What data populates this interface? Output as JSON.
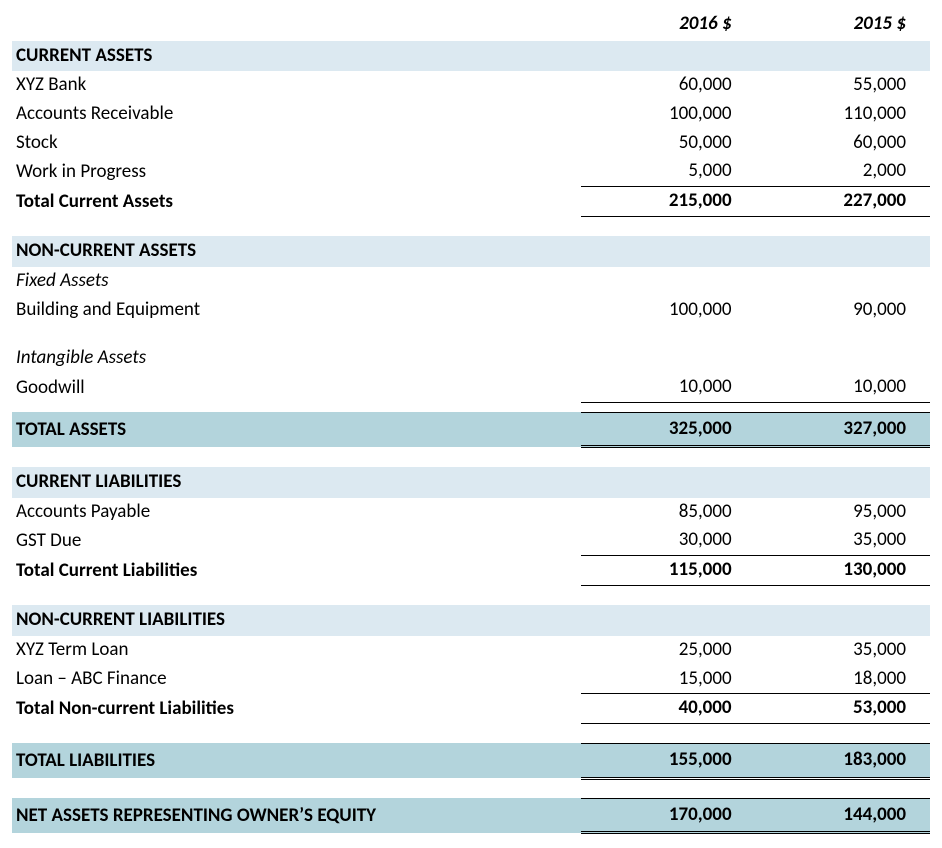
{
  "columns": {
    "year1": "2016 $",
    "year2": "2015 $"
  },
  "colors": {
    "section_light_bg": "#dce9f1",
    "section_dark_bg": "#b3d4dc",
    "text": "#000000",
    "background": "#ffffff",
    "border": "#000000"
  },
  "typography": {
    "font_family": "Calibri",
    "base_fontsize": 19
  },
  "sections": {
    "current_assets": {
      "header": "CURRENT ASSETS",
      "rows": [
        {
          "label": "XYZ Bank",
          "v1": "60,000",
          "v2": "55,000"
        },
        {
          "label": "Accounts Receivable",
          "v1": "100,000",
          "v2": "110,000"
        },
        {
          "label": "Stock",
          "v1": "50,000",
          "v2": "60,000"
        },
        {
          "label": "Work in Progress",
          "v1": "5,000",
          "v2": "2,000"
        }
      ],
      "total": {
        "label": "Total Current Assets",
        "v1": "215,000",
        "v2": "227,000"
      }
    },
    "non_current_assets": {
      "header": "NON-CURRENT ASSETS",
      "sub1": {
        "label": "Fixed Assets"
      },
      "rows1": [
        {
          "label": "Building and Equipment",
          "v1": "100,000",
          "v2": "90,000"
        }
      ],
      "sub2": {
        "label": "Intangible Assets"
      },
      "rows2": [
        {
          "label": "Goodwill",
          "v1": "10,000",
          "v2": "10,000"
        }
      ]
    },
    "total_assets": {
      "label": "TOTAL ASSETS",
      "v1": "325,000",
      "v2": "327,000"
    },
    "current_liabilities": {
      "header": "CURRENT LIABILITIES",
      "rows": [
        {
          "label": "Accounts Payable",
          "v1": "85,000",
          "v2": "95,000"
        },
        {
          "label": "GST Due",
          "v1": "30,000",
          "v2": "35,000"
        }
      ],
      "total": {
        "label": "Total Current Liabilities",
        "v1": "115,000",
        "v2": "130,000"
      }
    },
    "non_current_liabilities": {
      "header": "NON-CURRENT LIABILITIES",
      "rows": [
        {
          "label": "XYZ Term Loan",
          "v1": "25,000",
          "v2": "35,000"
        },
        {
          "label": "Loan – ABC Finance",
          "v1": "15,000",
          "v2": "18,000"
        }
      ],
      "total": {
        "label": "Total Non-current Liabilities",
        "v1": "40,000",
        "v2": "53,000"
      }
    },
    "total_liabilities": {
      "label": "TOTAL LIABILITIES",
      "v1": "155,000",
      "v2": "183,000"
    },
    "net_assets": {
      "label": "NET ASSETS REPRESENTING OWNER’S EQUITY",
      "v1": "170,000",
      "v2": "144,000"
    }
  }
}
